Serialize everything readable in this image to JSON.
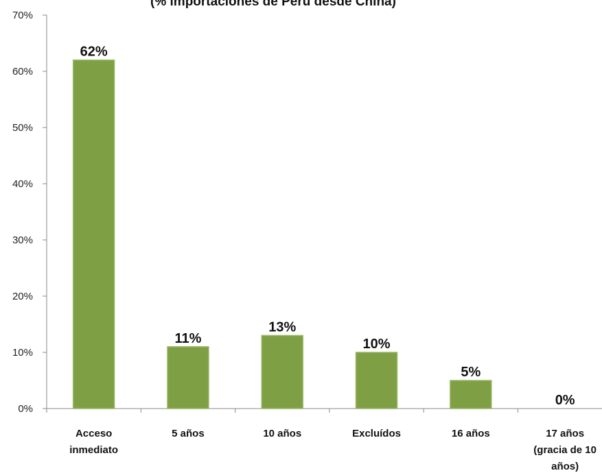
{
  "chart_data": {
    "type": "bar",
    "title": "(% importaciones de Perú desde China)",
    "categories": [
      [
        "Acceso",
        "inmediato"
      ],
      [
        "5 años"
      ],
      [
        "10 años"
      ],
      [
        "Excluídos"
      ],
      [
        "16 años"
      ],
      [
        "17 años",
        "(gracia de 10",
        "años)"
      ]
    ],
    "values": [
      62,
      11,
      13,
      10,
      5,
      0
    ],
    "data_labels": [
      "62%",
      "11%",
      "13%",
      "10%",
      "5%",
      "0%"
    ],
    "yticks": [
      "0%",
      "10%",
      "20%",
      "30%",
      "40%",
      "50%",
      "60%",
      "70%"
    ],
    "ylim": [
      0,
      70
    ],
    "xlabel": "",
    "ylabel": "",
    "grid": false,
    "legend": "none",
    "bar_color": "#7f9f45",
    "bar_edge_color": "#9ab866"
  }
}
